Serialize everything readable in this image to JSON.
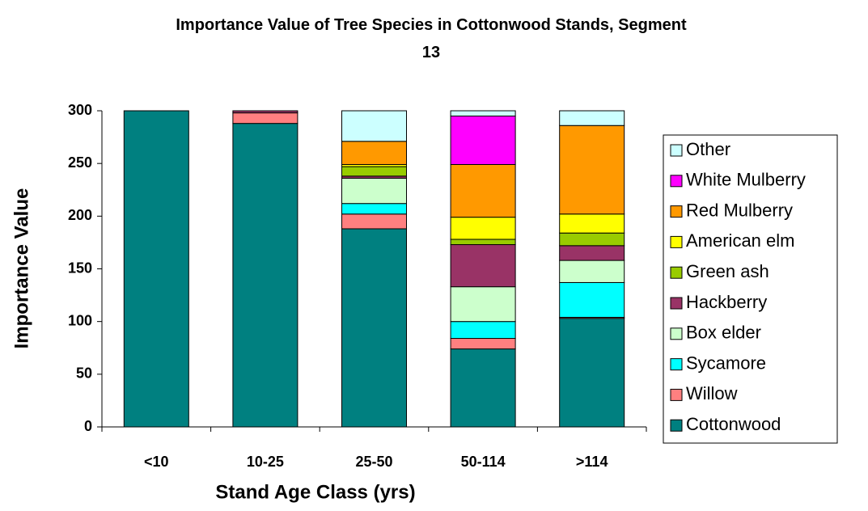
{
  "chart_data": {
    "type": "stacked_bar",
    "title": "Importance Value of Tree Species in Cottonwood Stands, Segment 13",
    "x_label": "Stand Age Class (yrs)",
    "y_label": "Importance Value",
    "categories": [
      "<10",
      "10-25",
      "25-50",
      "50-114",
      ">114"
    ],
    "ylim": [
      0,
      300
    ],
    "yticks": [
      0,
      50,
      100,
      150,
      200,
      250,
      300
    ],
    "legend": "right",
    "series": [
      {
        "name": "Cottonwood",
        "color": "#008080",
        "values": [
          300,
          288,
          188,
          74,
          103
        ]
      },
      {
        "name": "Willow",
        "color": "#ff8080",
        "values": [
          0,
          10,
          14,
          10,
          1
        ]
      },
      {
        "name": "Sycamore",
        "color": "#00ffff",
        "values": [
          0,
          0,
          10,
          16,
          33
        ]
      },
      {
        "name": "Box elder",
        "color": "#ccffcc",
        "values": [
          0,
          0,
          24,
          33,
          21
        ]
      },
      {
        "name": "Hackberry",
        "color": "#993366",
        "values": [
          0,
          2,
          2,
          40,
          14
        ]
      },
      {
        "name": "Green ash",
        "color": "#99cc00",
        "values": [
          0,
          0,
          9,
          5,
          12
        ]
      },
      {
        "name": "American elm",
        "color": "#ffff00",
        "values": [
          0,
          0,
          2,
          21,
          18
        ]
      },
      {
        "name": "Red Mulberry",
        "color": "#ff9900",
        "values": [
          0,
          0,
          22,
          50,
          84
        ]
      },
      {
        "name": "White Mulberry",
        "color": "#ff00ff",
        "values": [
          0,
          0,
          0,
          46,
          0
        ]
      },
      {
        "name": "Other",
        "color": "#ccffff",
        "values": [
          0,
          0,
          29,
          5,
          14
        ]
      }
    ]
  }
}
